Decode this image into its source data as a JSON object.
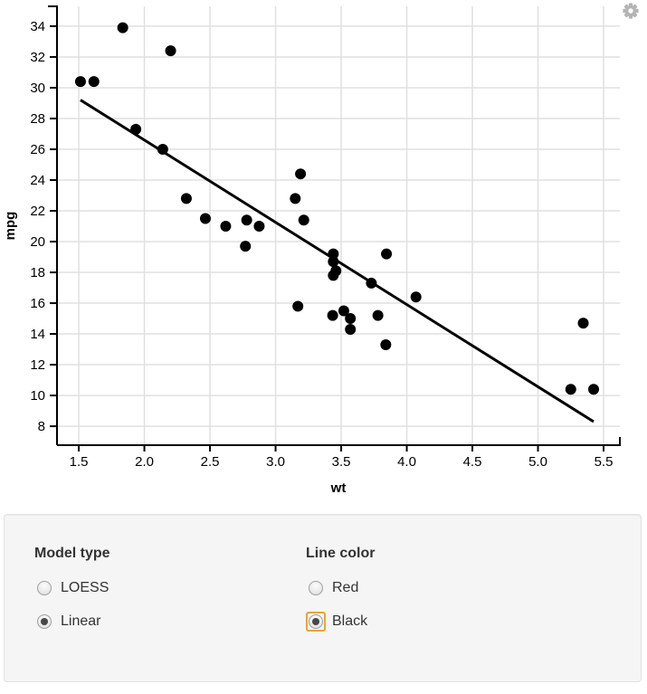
{
  "chart_data": {
    "type": "scatter",
    "title": "",
    "xlabel": "wt",
    "ylabel": "mpg",
    "xlim": [
      1.334,
      5.624
    ],
    "ylim": [
      6.77,
      35.29
    ],
    "x_ticks": [
      1.5,
      2.0,
      2.5,
      3.0,
      3.5,
      4.0,
      4.5,
      5.0,
      5.5
    ],
    "x_tick_labels": [
      "1.5",
      "2.0",
      "2.5",
      "3.0",
      "3.5",
      "4.0",
      "4.5",
      "5.0",
      "5.5"
    ],
    "y_ticks": [
      8,
      10,
      12,
      14,
      16,
      18,
      20,
      22,
      24,
      26,
      28,
      30,
      32,
      34
    ],
    "y_tick_labels": [
      "8",
      "10",
      "12",
      "14",
      "16",
      "18",
      "20",
      "22",
      "24",
      "26",
      "28",
      "30",
      "32",
      "34"
    ],
    "grid": true,
    "legend": "none",
    "points": [
      [
        2.62,
        21.0
      ],
      [
        2.875,
        21.0
      ],
      [
        2.32,
        22.8
      ],
      [
        3.215,
        21.4
      ],
      [
        3.44,
        18.7
      ],
      [
        3.46,
        18.1
      ],
      [
        3.57,
        14.3
      ],
      [
        3.19,
        24.4
      ],
      [
        3.15,
        22.8
      ],
      [
        3.44,
        19.2
      ],
      [
        3.44,
        17.8
      ],
      [
        4.07,
        16.4
      ],
      [
        3.73,
        17.3
      ],
      [
        3.78,
        15.2
      ],
      [
        5.25,
        10.4
      ],
      [
        5.424,
        10.4
      ],
      [
        5.345,
        14.7
      ],
      [
        2.2,
        32.4
      ],
      [
        1.615,
        30.4
      ],
      [
        1.835,
        33.9
      ],
      [
        2.465,
        21.5
      ],
      [
        3.52,
        15.5
      ],
      [
        3.435,
        15.2
      ],
      [
        3.84,
        13.3
      ],
      [
        3.845,
        19.2
      ],
      [
        1.935,
        27.3
      ],
      [
        2.14,
        26.0
      ],
      [
        1.513,
        30.4
      ],
      [
        3.17,
        15.8
      ],
      [
        2.77,
        19.7
      ],
      [
        3.57,
        15.0
      ],
      [
        2.78,
        21.4
      ]
    ],
    "trend_line": {
      "x1": 1.513,
      "y1": 29.2,
      "x2": 5.424,
      "y2": 8.3
    },
    "colors": {
      "point": "#000000",
      "line": "#000000",
      "grid": "#e0e0e0",
      "axis": "#000000",
      "label": "#000000"
    },
    "point_radius": 6,
    "line_width": 3
  },
  "plot": {
    "gear_icon": "gear",
    "gear_color": "#b4b4b4"
  },
  "controls": {
    "model_type": {
      "label": "Model type",
      "options": [
        {
          "label": "LOESS",
          "selected": false,
          "focused": false
        },
        {
          "label": "Linear",
          "selected": true,
          "focused": false
        }
      ]
    },
    "line_color": {
      "label": "Line color",
      "options": [
        {
          "label": "Red",
          "selected": false,
          "focused": false
        },
        {
          "label": "Black",
          "selected": true,
          "focused": true
        }
      ]
    }
  }
}
